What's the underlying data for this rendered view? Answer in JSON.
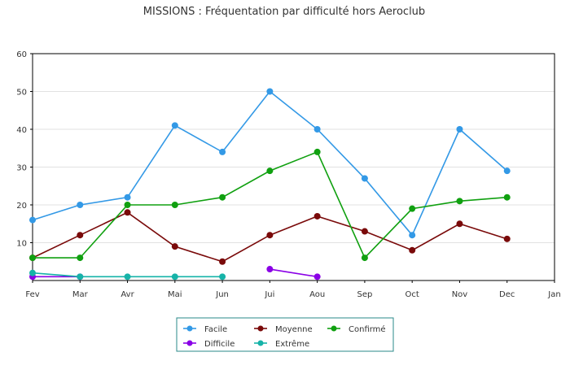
{
  "chart_data": {
    "type": "line",
    "title": "MISSIONS : Fréquentation par difficulté hors Aeroclub",
    "categories": [
      "Fev",
      "Mar",
      "Avr",
      "Mai",
      "Jun",
      "Jui",
      "Aou",
      "Sep",
      "Oct",
      "Nov",
      "Dec",
      "Jan"
    ],
    "ylim": [
      0,
      60
    ],
    "yticks": [
      10,
      20,
      30,
      40,
      50,
      60
    ],
    "grid": "horizontal",
    "legend_position": "bottom",
    "series": [
      {
        "name": "Facile",
        "color": "#3399e6",
        "values": [
          16,
          20,
          22,
          41,
          34,
          50,
          40,
          27,
          12,
          40,
          29,
          null
        ]
      },
      {
        "name": "Moyenne",
        "color": "#7a0a0a",
        "values": [
          6,
          12,
          18,
          9,
          5,
          12,
          17,
          13,
          8,
          15,
          11,
          null
        ]
      },
      {
        "name": "Confirmé",
        "color": "#10a010",
        "values": [
          6,
          6,
          20,
          20,
          22,
          29,
          34,
          6,
          19,
          21,
          22,
          null
        ]
      },
      {
        "name": "Difficile",
        "color": "#8a00e6",
        "values": [
          1,
          1,
          null,
          null,
          null,
          3,
          1,
          null,
          null,
          null,
          null,
          null
        ]
      },
      {
        "name": "Extrême",
        "color": "#16b3a8",
        "values": [
          2,
          1,
          1,
          1,
          1,
          null,
          null,
          null,
          null,
          null,
          null,
          null
        ]
      }
    ]
  }
}
